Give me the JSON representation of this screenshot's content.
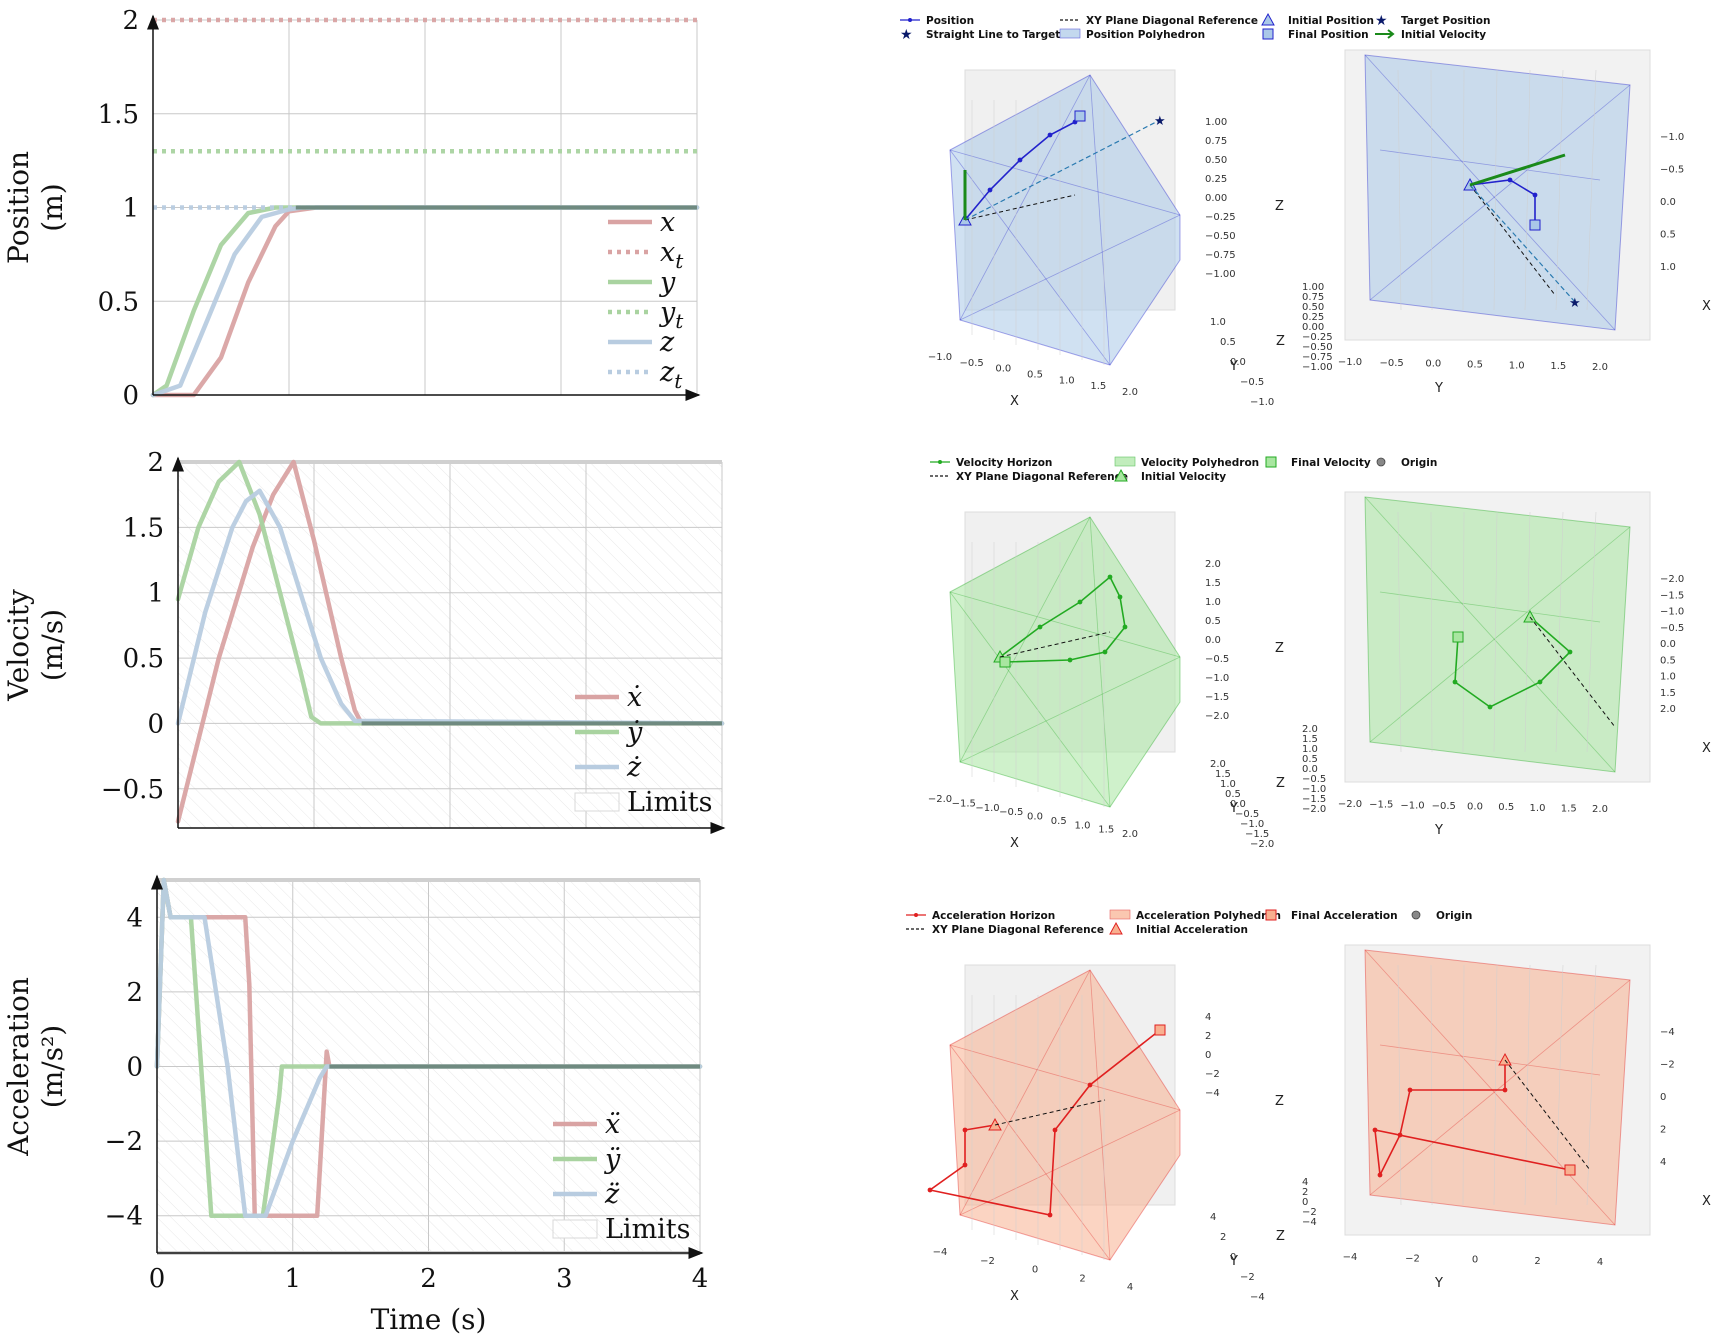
{
  "time_axis_label": "Time (s)",
  "time_ticks": [
    "0",
    "1",
    "2",
    "3",
    "4"
  ],
  "panels": [
    {
      "key": "position",
      "ylabel": [
        "Position",
        "(m)"
      ],
      "yticks": [
        "0",
        "0.5",
        "1",
        "1.5",
        "2"
      ],
      "legend": [
        "x",
        "x_t",
        "y",
        "y_t",
        "z",
        "z_t"
      ]
    },
    {
      "key": "velocity",
      "ylabel": [
        "Velocity",
        "(m/s)"
      ],
      "yticks": [
        "−0.5",
        "0",
        "0.5",
        "1",
        "1.5",
        "2"
      ],
      "legend": [
        "ẋ",
        "ẏ",
        "ż",
        "Limits"
      ]
    },
    {
      "key": "acceleration",
      "ylabel": [
        "Acceleration",
        "(m/s²)"
      ],
      "yticks": [
        "−4",
        "−2",
        "0",
        "2",
        "4"
      ],
      "legend": [
        "ẍ",
        "ÿ",
        "z̈",
        "Limits"
      ]
    }
  ],
  "colors": {
    "x": "#d9a3a3",
    "y": "#a9d3a0",
    "z": "#b8cce0",
    "position3d": "#2222cc",
    "velocity3d": "#22aa22",
    "acceleration3d": "#e02020",
    "polyBlue": "#aac8e8",
    "polyGreen": "#a8e6a0",
    "polyOrange": "#f8b090"
  },
  "chart_data": [
    {
      "type": "line",
      "title": "",
      "xlabel": "",
      "ylabel": "Position (m)",
      "xlim": [
        0,
        4
      ],
      "ylim": [
        0,
        2
      ],
      "series": [
        {
          "name": "x",
          "x": [
            0,
            0.3,
            0.5,
            0.7,
            0.9,
            1.0,
            1.2,
            4
          ],
          "values": [
            0,
            0,
            0.2,
            0.6,
            0.9,
            0.98,
            1,
            1
          ]
        },
        {
          "name": "x_t",
          "x": [
            0,
            4
          ],
          "values": [
            2,
            2
          ]
        },
        {
          "name": "y",
          "x": [
            0,
            0.1,
            0.3,
            0.5,
            0.7,
            0.9,
            4
          ],
          "values": [
            0,
            0.05,
            0.45,
            0.8,
            0.97,
            1,
            1
          ]
        },
        {
          "name": "y_t",
          "x": [
            0,
            4
          ],
          "values": [
            1.3,
            1.3
          ]
        },
        {
          "name": "z",
          "x": [
            0,
            0.2,
            0.4,
            0.6,
            0.8,
            1.0,
            1.1,
            4
          ],
          "values": [
            0,
            0.05,
            0.4,
            0.75,
            0.95,
            0.99,
            1,
            1
          ]
        },
        {
          "name": "z_t",
          "x": [
            0,
            4
          ],
          "values": [
            1,
            1
          ]
        }
      ]
    },
    {
      "type": "line",
      "title": "",
      "xlabel": "",
      "ylabel": "Velocity (m/s)",
      "xlim": [
        0,
        4
      ],
      "ylim": [
        -0.8,
        2
      ],
      "series": [
        {
          "name": "ẋ",
          "x": [
            0,
            0.3,
            0.55,
            0.7,
            0.85,
            1.0,
            1.2,
            1.3,
            1.35,
            4
          ],
          "values": [
            -0.75,
            0.5,
            1.35,
            1.75,
            2.0,
            1.4,
            0.5,
            0.1,
            0,
            0
          ]
        },
        {
          "name": "ẏ",
          "x": [
            0,
            0.15,
            0.3,
            0.45,
            0.6,
            0.75,
            0.9,
            0.98,
            1.05,
            4
          ],
          "values": [
            0.95,
            1.5,
            1.85,
            2.0,
            1.6,
            1.0,
            0.4,
            0.05,
            0,
            0
          ]
        },
        {
          "name": "ż",
          "x": [
            0,
            0.2,
            0.4,
            0.5,
            0.6,
            0.75,
            0.9,
            1.05,
            1.2,
            1.3,
            4
          ],
          "values": [
            0,
            0.85,
            1.5,
            1.7,
            1.78,
            1.5,
            1.0,
            0.5,
            0.15,
            0.02,
            0
          ]
        },
        {
          "name": "Limits",
          "x": [
            0,
            4
          ],
          "values": [
            2,
            2
          ]
        }
      ]
    },
    {
      "type": "line",
      "title": "",
      "xlabel": "Time (s)",
      "ylabel": "Acceleration (m/s²)",
      "xlim": [
        0,
        4
      ],
      "ylim": [
        -5,
        5
      ],
      "series": [
        {
          "name": "ẍ",
          "x": [
            0,
            0.05,
            0.1,
            0.65,
            0.68,
            0.72,
            1.18,
            1.25,
            1.27,
            4
          ],
          "values": [
            0,
            5,
            4,
            4,
            2.2,
            -4,
            -4,
            0.4,
            0,
            0
          ]
        },
        {
          "name": "ÿ",
          "x": [
            0,
            0.05,
            0.1,
            0.25,
            0.4,
            0.78,
            0.9,
            0.92,
            4
          ],
          "values": [
            0,
            5,
            4,
            4,
            -4,
            -4,
            -0.8,
            0,
            0
          ]
        },
        {
          "name": "z̈",
          "x": [
            0,
            0.05,
            0.1,
            0.35,
            0.52,
            0.65,
            0.8,
            1.0,
            1.2,
            1.25,
            4
          ],
          "values": [
            0,
            5,
            4,
            4,
            0,
            -4,
            -4,
            -2,
            -0.3,
            0,
            0
          ]
        },
        {
          "name": "Limits",
          "x": [
            0,
            4
          ],
          "values": [
            5,
            5
          ]
        }
      ]
    }
  ],
  "plots3d": [
    {
      "key": "position",
      "legend": [
        [
          "Position",
          "XY Plane Diagonal Reference",
          "Initial Position",
          "Target Position"
        ],
        [
          "Straight Line to Target",
          "Position Polyhedron",
          "Final Position",
          "Initial Velocity"
        ]
      ],
      "left_axes": {
        "x_ticks": [
          "−1.0",
          "−0.5",
          "0.0",
          "0.5",
          "1.0",
          "1.5",
          "2.0"
        ],
        "y_ticks": [
          "−1.0",
          "−0.5",
          "0.0",
          "0.5",
          "1.0"
        ],
        "z_ticks": [
          "1.00",
          "0.75",
          "0.50",
          "0.25",
          "0.00",
          "−0.25",
          "−0.50",
          "−0.75",
          "−1.00"
        ]
      },
      "right_axes": {
        "x_ticks": [
          "−1.0",
          "−0.5",
          "0.0",
          "0.5",
          "1.0"
        ],
        "y_ticks": [
          "−1.0",
          "−0.5",
          "0.0",
          "0.5",
          "1.0",
          "1.5",
          "2.0"
        ],
        "z_ticks": [
          "1.00",
          "0.75",
          "0.50",
          "0.25",
          "0.00",
          "−0.25",
          "−0.50",
          "−0.75",
          "−1.00"
        ]
      }
    },
    {
      "key": "velocity",
      "legend": [
        [
          "Velocity Horizon",
          "Velocity Polyhedron",
          "Final Velocity",
          "Origin"
        ],
        [
          "XY Plane Diagonal Reference",
          "Initial Velocity"
        ]
      ],
      "left_axes": {
        "x_ticks": [
          "−2.0",
          "−1.5",
          "−1.0",
          "−0.5",
          "0.0",
          "0.5",
          "1.0",
          "1.5",
          "2.0"
        ],
        "y_ticks": [
          "−2.0",
          "−1.5",
          "−1.0",
          "−0.5",
          "0.0",
          "0.5",
          "1.0",
          "1.5",
          "2.0"
        ],
        "z_ticks": [
          "2.0",
          "1.5",
          "1.0",
          "0.5",
          "0.0",
          "−0.5",
          "−1.0",
          "−1.5",
          "−2.0"
        ]
      },
      "right_axes": {
        "x_ticks": [
          "−2.0",
          "−1.5",
          "−1.0",
          "−0.5",
          "0.0",
          "0.5",
          "1.0",
          "1.5",
          "2.0"
        ],
        "y_ticks": [
          "−2.0",
          "−1.5",
          "−1.0",
          "−0.5",
          "0.0",
          "0.5",
          "1.0",
          "1.5",
          "2.0"
        ],
        "z_ticks": [
          "2.0",
          "1.5",
          "1.0",
          "0.5",
          "0.0",
          "−0.5",
          "−1.0",
          "−1.5",
          "−2.0"
        ]
      }
    },
    {
      "key": "acceleration",
      "legend": [
        [
          "Acceleration Horizon",
          "Acceleration Polyhedron",
          "Final Acceleration",
          "Origin"
        ],
        [
          "XY Plane Diagonal Reference",
          "Initial Acceleration"
        ]
      ],
      "left_axes": {
        "x_ticks": [
          "−4",
          "−2",
          "0",
          "2",
          "4"
        ],
        "y_ticks": [
          "−4",
          "−2",
          "0",
          "2",
          "4"
        ],
        "z_ticks": [
          "4",
          "2",
          "0",
          "−2",
          "−4"
        ]
      },
      "right_axes": {
        "x_ticks": [
          "−4",
          "−2",
          "0",
          "2",
          "4"
        ],
        "y_ticks": [
          "−4",
          "−2",
          "0",
          "2",
          "4"
        ],
        "z_ticks": [
          "4",
          "2",
          "0",
          "−2",
          "−4"
        ]
      }
    }
  ],
  "axis_names": {
    "x": "X",
    "y": "Y",
    "z": "Z"
  }
}
